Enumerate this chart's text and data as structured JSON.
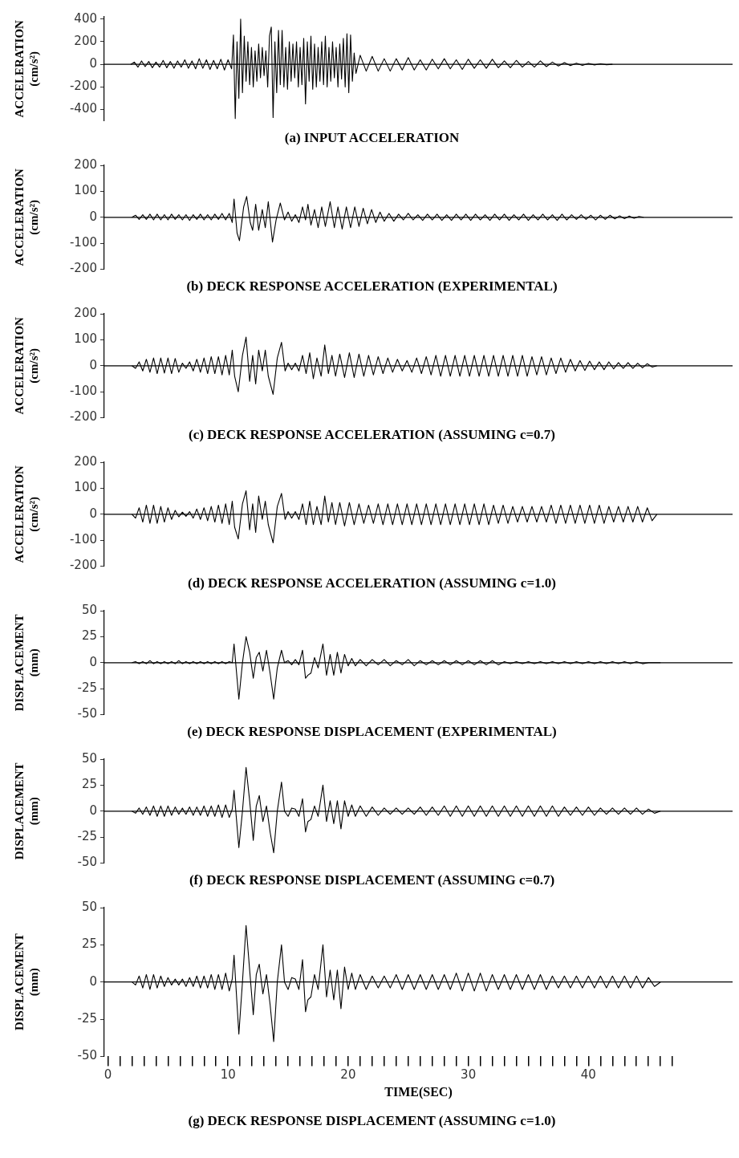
{
  "chart_data": [
    {
      "type": "line",
      "title": "(a) INPUT ACCELERATION",
      "ylabel": "ACCELERATION (cm/s²)",
      "color": "#000000",
      "xlim": [
        -0.3,
        52
      ],
      "ylim": [
        -500,
        420
      ],
      "yticks": [
        -400,
        -200,
        0,
        200,
        400
      ],
      "tick_labels": "y",
      "ref_lines": [
        {
          "axis": "y",
          "value": 0
        }
      ],
      "x": [
        1.9,
        2.2,
        2.5,
        2.8,
        3.1,
        3.4,
        3.7,
        4.0,
        4.3,
        4.6,
        4.9,
        5.2,
        5.5,
        5.8,
        6.1,
        6.4,
        6.7,
        7.0,
        7.3,
        7.6,
        7.9,
        8.2,
        8.5,
        8.8,
        9.1,
        9.4,
        9.7,
        10.0,
        10.3,
        10.45,
        10.6,
        10.75,
        10.9,
        11.05,
        11.2,
        11.35,
        11.5,
        11.65,
        11.8,
        11.95,
        12.1,
        12.25,
        12.4,
        12.55,
        12.7,
        12.85,
        13.0,
        13.15,
        13.3,
        13.45,
        13.6,
        13.75,
        13.9,
        14.05,
        14.2,
        14.35,
        14.5,
        14.65,
        14.8,
        14.95,
        15.1,
        15.25,
        15.4,
        15.55,
        15.7,
        15.85,
        16.0,
        16.15,
        16.3,
        16.45,
        16.6,
        16.75,
        16.9,
        17.05,
        17.2,
        17.35,
        17.5,
        17.65,
        17.8,
        17.95,
        18.1,
        18.25,
        18.4,
        18.55,
        18.7,
        18.85,
        19.0,
        19.15,
        19.3,
        19.45,
        19.6,
        19.75,
        19.9,
        20.05,
        20.2,
        20.35,
        20.5,
        20.65,
        21,
        21.5,
        22,
        22.5,
        23,
        23.5,
        24,
        24.5,
        25,
        25.5,
        26,
        26.5,
        27,
        27.5,
        28,
        28.5,
        29,
        29.5,
        30,
        30.5,
        31,
        31.5,
        32,
        32.5,
        33,
        33.5,
        34,
        34.5,
        35,
        35.5,
        36,
        36.5,
        37,
        37.5,
        38,
        38.5,
        39,
        39.5,
        40,
        40.5,
        41,
        41.5,
        42
      ],
      "values": [
        0,
        20,
        -25,
        30,
        -20,
        25,
        -30,
        20,
        -25,
        35,
        -30,
        25,
        -35,
        30,
        -25,
        40,
        -35,
        30,
        -40,
        50,
        -35,
        40,
        -45,
        35,
        -40,
        45,
        -50,
        40,
        -40,
        260,
        -480,
        200,
        -300,
        400,
        -250,
        250,
        -150,
        200,
        -180,
        150,
        -200,
        120,
        -150,
        180,
        -120,
        150,
        -100,
        120,
        -200,
        250,
        330,
        -470,
        200,
        -250,
        300,
        -180,
        300,
        -200,
        150,
        -220,
        200,
        -150,
        180,
        -120,
        200,
        -200,
        150,
        -180,
        230,
        -350,
        200,
        -150,
        250,
        -220,
        180,
        -200,
        150,
        -150,
        200,
        -180,
        250,
        -200,
        150,
        -150,
        200,
        -120,
        150,
        -200,
        180,
        -130,
        230,
        -200,
        270,
        -250,
        260,
        -150,
        100,
        -80,
        80,
        -60,
        70,
        -60,
        50,
        -60,
        50,
        -50,
        60,
        -50,
        40,
        -50,
        45,
        -40,
        50,
        -40,
        40,
        -45,
        45,
        -35,
        40,
        -35,
        45,
        -30,
        30,
        -30,
        35,
        -25,
        25,
        -25,
        30,
        -20,
        20,
        -15,
        15,
        -12,
        10,
        -10,
        8,
        -5,
        5,
        -3,
        0
      ]
    },
    {
      "type": "line",
      "title": "(b) DECK RESPONSE ACCELERATION (EXPERIMENTAL)",
      "ylabel": "ACCELERATION (cm/s²)",
      "color": "#000000",
      "xlim": [
        -0.3,
        52
      ],
      "ylim": [
        -200,
        200
      ],
      "yticks": [
        -200,
        -100,
        0,
        100,
        200
      ],
      "tick_labels": "y",
      "ref_lines": [
        {
          "axis": "y",
          "value": 0
        }
      ],
      "x": [
        2.0,
        2.3,
        2.6,
        2.9,
        3.2,
        3.5,
        3.8,
        4.1,
        4.4,
        4.7,
        5.0,
        5.3,
        5.6,
        5.9,
        6.2,
        6.5,
        6.8,
        7.1,
        7.4,
        7.7,
        8.0,
        8.3,
        8.6,
        8.9,
        9.2,
        9.5,
        9.8,
        10.1,
        10.35,
        10.5,
        10.75,
        10.95,
        11.3,
        11.55,
        11.85,
        12.05,
        12.3,
        12.55,
        12.85,
        13.1,
        13.35,
        13.7,
        14.0,
        14.35,
        14.7,
        15.0,
        15.3,
        15.6,
        15.9,
        16.2,
        16.45,
        16.65,
        16.9,
        17.2,
        17.5,
        17.8,
        18.1,
        18.5,
        18.85,
        19.15,
        19.5,
        19.85,
        20.2,
        20.55,
        20.9,
        21.25,
        21.6,
        21.95,
        22.3,
        22.65,
        23.0,
        23.4,
        23.8,
        24.2,
        24.6,
        25.0,
        25.4,
        25.8,
        26.2,
        26.6,
        27.0,
        27.4,
        27.8,
        28.2,
        28.6,
        29.0,
        29.4,
        29.8,
        30.2,
        30.6,
        31.0,
        31.4,
        31.8,
        32.2,
        32.6,
        33.0,
        33.4,
        33.8,
        34.2,
        34.6,
        35.0,
        35.4,
        35.8,
        36.2,
        36.6,
        37.0,
        37.4,
        37.8,
        38.2,
        38.6,
        39.0,
        39.4,
        39.8,
        40.2,
        40.6,
        41.0,
        41.4,
        41.8,
        42.2,
        42.6,
        43.0,
        43.4,
        43.8,
        44.2,
        44.6
      ],
      "values": [
        0,
        8,
        -8,
        10,
        -8,
        12,
        -10,
        12,
        -10,
        10,
        -10,
        12,
        -8,
        10,
        -10,
        10,
        -12,
        10,
        -8,
        12,
        -10,
        10,
        -10,
        12,
        -8,
        15,
        -10,
        15,
        -20,
        70,
        -60,
        -90,
        40,
        80,
        -20,
        -50,
        50,
        -50,
        30,
        -40,
        60,
        -95,
        -10,
        55,
        -10,
        20,
        -15,
        10,
        -20,
        40,
        -10,
        50,
        -30,
        30,
        -40,
        40,
        -35,
        60,
        -40,
        40,
        -45,
        40,
        -40,
        40,
        -35,
        35,
        -25,
        30,
        -20,
        20,
        -15,
        15,
        -15,
        12,
        -10,
        15,
        -10,
        10,
        -12,
        12,
        -10,
        12,
        -12,
        10,
        -12,
        12,
        -10,
        12,
        -12,
        12,
        -10,
        10,
        -12,
        12,
        -10,
        12,
        -12,
        10,
        -10,
        12,
        -12,
        10,
        -10,
        12,
        -10,
        10,
        -12,
        12,
        -10,
        10,
        -8,
        10,
        -8,
        8,
        -10,
        8,
        -8,
        8,
        -6,
        6,
        -5,
        5,
        -4,
        3,
        0
      ]
    },
    {
      "type": "line",
      "title": "(c) DECK RESPONSE ACCELERATION (ASSUMING c=0.7)",
      "ylabel": "ACCELERATION (cm/s²)",
      "color": "#000000",
      "xlim": [
        -0.3,
        52
      ],
      "ylim": [
        -200,
        200
      ],
      "yticks": [
        -200,
        -100,
        0,
        100,
        200
      ],
      "tick_labels": "y",
      "ref_lines": [
        {
          "axis": "y",
          "value": 0
        }
      ],
      "x": [
        2.0,
        2.3,
        2.6,
        2.9,
        3.2,
        3.5,
        3.8,
        4.1,
        4.4,
        4.7,
        5.0,
        5.3,
        5.6,
        5.9,
        6.2,
        6.5,
        6.8,
        7.1,
        7.4,
        7.7,
        8.0,
        8.3,
        8.6,
        8.9,
        9.2,
        9.5,
        9.8,
        10.1,
        10.35,
        10.55,
        10.85,
        11.2,
        11.5,
        11.8,
        12.05,
        12.3,
        12.55,
        12.85,
        13.1,
        13.35,
        13.75,
        14.1,
        14.45,
        14.75,
        15.0,
        15.3,
        15.6,
        15.9,
        16.2,
        16.5,
        16.8,
        17.1,
        17.4,
        17.75,
        18.05,
        18.35,
        18.65,
        18.95,
        19.3,
        19.7,
        20.1,
        20.5,
        20.9,
        21.3,
        21.7,
        22.1,
        22.5,
        22.9,
        23.3,
        23.7,
        24.1,
        24.5,
        24.9,
        25.3,
        25.7,
        26.1,
        26.5,
        26.9,
        27.3,
        27.7,
        28.1,
        28.5,
        28.9,
        29.3,
        29.7,
        30.1,
        30.5,
        30.9,
        31.3,
        31.7,
        32.1,
        32.5,
        32.9,
        33.3,
        33.7,
        34.1,
        34.5,
        34.9,
        35.3,
        35.7,
        36.1,
        36.5,
        36.9,
        37.3,
        37.7,
        38.1,
        38.5,
        38.9,
        39.3,
        39.7,
        40.1,
        40.5,
        40.9,
        41.3,
        41.7,
        42.1,
        42.5,
        42.9,
        43.3,
        43.7,
        44.1,
        44.5,
        44.9,
        45.3,
        45.7
      ],
      "values": [
        0,
        -10,
        15,
        -20,
        25,
        -25,
        30,
        -30,
        30,
        -28,
        30,
        -30,
        28,
        -25,
        10,
        -10,
        15,
        -20,
        25,
        -25,
        30,
        -30,
        35,
        -30,
        35,
        -35,
        40,
        -35,
        60,
        -40,
        -100,
        40,
        110,
        -60,
        40,
        -70,
        60,
        -20,
        60,
        -40,
        -110,
        30,
        90,
        -20,
        10,
        -15,
        10,
        -20,
        40,
        -30,
        50,
        -50,
        30,
        -40,
        80,
        -30,
        40,
        -40,
        45,
        -45,
        50,
        -45,
        45,
        -40,
        40,
        -35,
        35,
        -30,
        30,
        -25,
        25,
        -20,
        20,
        -25,
        30,
        -30,
        35,
        -35,
        40,
        -40,
        40,
        -40,
        40,
        -40,
        40,
        -40,
        40,
        -40,
        40,
        -40,
        40,
        -40,
        40,
        -40,
        40,
        -40,
        40,
        -40,
        35,
        -35,
        35,
        -35,
        30,
        -30,
        30,
        -25,
        25,
        -20,
        20,
        -18,
        18,
        -15,
        15,
        -15,
        15,
        -12,
        12,
        -10,
        12,
        -10,
        10,
        -8,
        8,
        -5,
        0
      ]
    },
    {
      "type": "line",
      "title": "(d) DECK RESPONSE ACCELERATION (ASSUMING c=1.0)",
      "ylabel": "ACCELERATION (cm/s²)",
      "color": "#000000",
      "xlim": [
        -0.3,
        52
      ],
      "ylim": [
        -200,
        200
      ],
      "yticks": [
        -200,
        -100,
        0,
        100,
        200
      ],
      "tick_labels": "y",
      "ref_lines": [
        {
          "axis": "y",
          "value": 0
        }
      ],
      "x": [
        2.0,
        2.3,
        2.6,
        2.9,
        3.2,
        3.5,
        3.8,
        4.1,
        4.4,
        4.7,
        5.0,
        5.3,
        5.6,
        5.9,
        6.2,
        6.5,
        6.8,
        7.1,
        7.4,
        7.7,
        8.0,
        8.3,
        8.6,
        8.9,
        9.2,
        9.5,
        9.8,
        10.1,
        10.35,
        10.55,
        10.85,
        11.2,
        11.5,
        11.8,
        12.05,
        12.3,
        12.55,
        12.85,
        13.1,
        13.35,
        13.75,
        14.1,
        14.45,
        14.75,
        15.0,
        15.3,
        15.6,
        15.9,
        16.2,
        16.5,
        16.8,
        17.1,
        17.4,
        17.75,
        18.05,
        18.35,
        18.65,
        18.95,
        19.3,
        19.7,
        20.1,
        20.5,
        20.9,
        21.3,
        21.7,
        22.1,
        22.5,
        22.9,
        23.3,
        23.7,
        24.1,
        24.5,
        24.9,
        25.3,
        25.7,
        26.1,
        26.5,
        26.9,
        27.3,
        27.7,
        28.1,
        28.5,
        28.9,
        29.3,
        29.7,
        30.1,
        30.5,
        30.9,
        31.3,
        31.7,
        32.1,
        32.5,
        32.9,
        33.3,
        33.7,
        34.1,
        34.5,
        34.9,
        35.3,
        35.7,
        36.1,
        36.5,
        36.9,
        37.3,
        37.7,
        38.1,
        38.5,
        38.9,
        39.3,
        39.7,
        40.1,
        40.5,
        40.9,
        41.3,
        41.7,
        42.1,
        42.5,
        42.9,
        43.3,
        43.7,
        44.1,
        44.5,
        44.9,
        45.3,
        45.7
      ],
      "values": [
        0,
        -15,
        25,
        -30,
        35,
        -35,
        35,
        -35,
        30,
        -30,
        25,
        -20,
        15,
        -10,
        8,
        -8,
        10,
        -15,
        20,
        -20,
        25,
        -25,
        30,
        -30,
        35,
        -35,
        40,
        -40,
        50,
        -50,
        -95,
        40,
        90,
        -60,
        40,
        -70,
        70,
        -20,
        50,
        -40,
        -110,
        30,
        80,
        -20,
        10,
        -15,
        10,
        -20,
        40,
        -40,
        50,
        -40,
        30,
        -40,
        70,
        -30,
        45,
        -40,
        45,
        -45,
        45,
        -40,
        40,
        -35,
        35,
        -35,
        40,
        -40,
        40,
        -40,
        40,
        -40,
        40,
        -40,
        40,
        -40,
        40,
        -40,
        40,
        -40,
        40,
        -40,
        40,
        -40,
        40,
        -40,
        40,
        -40,
        40,
        -40,
        35,
        -35,
        35,
        -35,
        30,
        -30,
        30,
        -30,
        30,
        -30,
        30,
        -30,
        35,
        -35,
        35,
        -35,
        35,
        -35,
        35,
        -35,
        35,
        -35,
        35,
        -35,
        30,
        -30,
        30,
        -30,
        30,
        -30,
        30,
        -30,
        25,
        -25,
        0
      ]
    },
    {
      "type": "line",
      "title": "(e) DECK RESPONSE DISPLACEMENT (EXPERIMENTAL)",
      "ylabel": "DISPLACEMENT (mm)",
      "color": "#000000",
      "xlim": [
        -0.3,
        52
      ],
      "ylim": [
        -50,
        50
      ],
      "yticks": [
        -50,
        -25,
        0,
        25,
        50
      ],
      "tick_labels": "y",
      "ref_lines": [
        {
          "axis": "y",
          "value": 0
        }
      ],
      "x": [
        2.0,
        2.3,
        2.6,
        2.9,
        3.2,
        3.5,
        3.8,
        4.1,
        4.4,
        4.7,
        5.0,
        5.3,
        5.6,
        5.9,
        6.2,
        6.5,
        6.8,
        7.1,
        7.4,
        7.7,
        8.0,
        8.3,
        8.6,
        8.9,
        9.2,
        9.5,
        9.8,
        10.1,
        10.35,
        10.5,
        10.9,
        11.2,
        11.5,
        11.8,
        12.1,
        12.35,
        12.6,
        12.9,
        13.2,
        13.5,
        13.8,
        14.1,
        14.45,
        14.7,
        15.0,
        15.3,
        15.6,
        15.9,
        16.2,
        16.45,
        16.65,
        16.9,
        17.2,
        17.5,
        17.9,
        18.2,
        18.5,
        18.8,
        19.1,
        19.4,
        19.7,
        20.0,
        20.3,
        20.6,
        21,
        21.5,
        22,
        22.5,
        23,
        23.5,
        24,
        24.5,
        25,
        25.5,
        26,
        26.5,
        27,
        27.5,
        28,
        28.5,
        29,
        29.5,
        30,
        30.5,
        31,
        31.5,
        32,
        32.5,
        33,
        33.5,
        34,
        34.5,
        35,
        35.5,
        36,
        36.5,
        37,
        37.5,
        38,
        38.5,
        39,
        39.5,
        40,
        40.5,
        41,
        41.5,
        42,
        42.5,
        43,
        43.5,
        44,
        44.5,
        45,
        45.5,
        46
      ],
      "values": [
        0,
        1,
        -1,
        1,
        -1,
        2,
        -1,
        1,
        -1,
        1,
        -1,
        1,
        -1,
        2,
        -1,
        1,
        -1,
        1,
        -1,
        1,
        -1,
        1,
        -1,
        1,
        -1,
        1,
        -1,
        1,
        0,
        18,
        -35,
        0,
        25,
        10,
        -15,
        5,
        10,
        -8,
        12,
        -10,
        -35,
        -5,
        12,
        0,
        2,
        -2,
        3,
        -2,
        12,
        -15,
        -12,
        -10,
        5,
        -5,
        18,
        -12,
        8,
        -12,
        10,
        -10,
        8,
        -3,
        4,
        -3,
        3,
        -3,
        3,
        -2,
        3,
        -3,
        2,
        -2,
        3,
        -3,
        2,
        -2,
        2,
        -2,
        2,
        -2,
        2,
        -2,
        2,
        -2,
        2,
        -2,
        2,
        -2,
        1,
        -1,
        1,
        -1,
        1,
        -1,
        1,
        -1,
        1,
        -1,
        1,
        -1,
        1,
        -1,
        1,
        -1,
        1,
        -1,
        1,
        -1,
        1,
        -1,
        1,
        -1,
        0,
        0,
        0
      ]
    },
    {
      "type": "line",
      "title": "(f) DECK RESPONSE DISPLACEMENT (ASSUMING c=0.7)",
      "ylabel": "DISPLACEMENT (mm)",
      "color": "#000000",
      "xlim": [
        -0.3,
        52
      ],
      "ylim": [
        -50,
        50
      ],
      "yticks": [
        -50,
        -25,
        0,
        25,
        50
      ],
      "tick_labels": "y",
      "ref_lines": [
        {
          "axis": "y",
          "value": 0
        }
      ],
      "x": [
        2.0,
        2.3,
        2.6,
        2.9,
        3.2,
        3.5,
        3.8,
        4.1,
        4.4,
        4.7,
        5.0,
        5.3,
        5.6,
        5.9,
        6.2,
        6.5,
        6.8,
        7.1,
        7.4,
        7.7,
        8.0,
        8.3,
        8.6,
        8.9,
        9.2,
        9.5,
        9.8,
        10.1,
        10.35,
        10.5,
        10.9,
        11.2,
        11.5,
        11.8,
        12.1,
        12.35,
        12.6,
        12.9,
        13.2,
        13.5,
        13.8,
        14.1,
        14.45,
        14.7,
        15.0,
        15.3,
        15.6,
        15.9,
        16.2,
        16.45,
        16.65,
        16.9,
        17.2,
        17.5,
        17.9,
        18.2,
        18.5,
        18.8,
        19.1,
        19.4,
        19.7,
        20.0,
        20.3,
        20.6,
        21,
        21.5,
        22,
        22.5,
        23,
        23.5,
        24,
        24.5,
        25,
        25.5,
        26,
        26.5,
        27,
        27.5,
        28,
        28.5,
        29,
        29.5,
        30,
        30.5,
        31,
        31.5,
        32,
        32.5,
        33,
        33.5,
        34,
        34.5,
        35,
        35.5,
        36,
        36.5,
        37,
        37.5,
        38,
        38.5,
        39,
        39.5,
        40,
        40.5,
        41,
        41.5,
        42,
        42.5,
        43,
        43.5,
        44,
        44.5,
        45,
        45.5,
        46
      ],
      "values": [
        0,
        -2,
        3,
        -3,
        4,
        -4,
        5,
        -5,
        5,
        -5,
        5,
        -4,
        4,
        -3,
        3,
        -3,
        4,
        -4,
        4,
        -4,
        5,
        -5,
        5,
        -5,
        6,
        -6,
        6,
        -6,
        2,
        20,
        -35,
        0,
        42,
        10,
        -28,
        5,
        15,
        -10,
        5,
        -20,
        -40,
        0,
        28,
        0,
        -5,
        3,
        2,
        -5,
        12,
        -20,
        -10,
        -8,
        5,
        -5,
        25,
        -10,
        10,
        -12,
        10,
        -17,
        10,
        -5,
        6,
        -5,
        5,
        -5,
        4,
        -4,
        3,
        -3,
        3,
        -3,
        3,
        -3,
        4,
        -4,
        4,
        -4,
        5,
        -5,
        5,
        -5,
        5,
        -5,
        5,
        -5,
        5,
        -5,
        5,
        -5,
        5,
        -5,
        5,
        -5,
        5,
        -5,
        5,
        -5,
        4,
        -4,
        4,
        -4,
        4,
        -4,
        3,
        -3,
        3,
        -3,
        3,
        -3,
        3,
        -3,
        2,
        -2,
        0
      ]
    },
    {
      "type": "line",
      "title": "(g) DECK RESPONSE DISPLACEMENT (ASSUMING c=1.0)",
      "ylabel": "DISPLACEMENT (mm)",
      "xlabel": "TIME(SEC)",
      "color": "#000000",
      "xlim": [
        -0.3,
        52
      ],
      "ylim": [
        -50,
        50
      ],
      "yticks": [
        -50,
        -25,
        0,
        25,
        50
      ],
      "ref_lines": [
        {
          "axis": "y",
          "value": 0
        }
      ],
      "xticks": [
        0,
        {
          "value": 1,
          "label": null
        },
        {
          "value": 2,
          "label": null
        },
        {
          "value": 3,
          "label": null
        },
        {
          "value": 4,
          "label": null
        },
        {
          "value": 5,
          "label": null
        },
        {
          "value": 6,
          "label": null
        },
        {
          "value": 7,
          "label": null
        },
        {
          "value": 8,
          "label": null
        },
        {
          "value": 9,
          "label": null
        },
        10,
        {
          "value": 11,
          "label": null
        },
        {
          "value": 12,
          "label": null
        },
        {
          "value": 13,
          "label": null
        },
        {
          "value": 14,
          "label": null
        },
        {
          "value": 15,
          "label": null
        },
        {
          "value": 16,
          "label": null
        },
        {
          "value": 17,
          "label": null
        },
        {
          "value": 18,
          "label": null
        },
        {
          "value": 19,
          "label": null
        },
        20,
        {
          "value": 21,
          "label": null
        },
        {
          "value": 22,
          "label": null
        },
        {
          "value": 23,
          "label": null
        },
        {
          "value": 24,
          "label": null
        },
        {
          "value": 25,
          "label": null
        },
        {
          "value": 26,
          "label": null
        },
        {
          "value": 27,
          "label": null
        },
        {
          "value": 28,
          "label": null
        },
        {
          "value": 29,
          "label": null
        },
        30,
        {
          "value": 31,
          "label": null
        },
        {
          "value": 32,
          "label": null
        },
        {
          "value": 33,
          "label": null
        },
        {
          "value": 34,
          "label": null
        },
        {
          "value": 35,
          "label": null
        },
        {
          "value": 36,
          "label": null
        },
        {
          "value": 37,
          "label": null
        },
        {
          "value": 38,
          "label": null
        },
        {
          "value": 39,
          "label": null
        },
        40,
        {
          "value": 41,
          "label": null
        },
        {
          "value": 42,
          "label": null
        },
        {
          "value": 43,
          "label": null
        },
        {
          "value": 44,
          "label": null
        },
        {
          "value": 45,
          "label": null
        },
        {
          "value": 46,
          "label": null
        },
        {
          "value": 47,
          "label": null
        }
      ],
      "x": [
        2.0,
        2.3,
        2.6,
        2.9,
        3.2,
        3.5,
        3.8,
        4.1,
        4.4,
        4.7,
        5.0,
        5.3,
        5.6,
        5.9,
        6.2,
        6.5,
        6.8,
        7.1,
        7.4,
        7.7,
        8.0,
        8.3,
        8.6,
        8.9,
        9.2,
        9.5,
        9.8,
        10.1,
        10.35,
        10.5,
        10.9,
        11.2,
        11.5,
        11.8,
        12.1,
        12.35,
        12.6,
        12.9,
        13.2,
        13.5,
        13.8,
        14.1,
        14.45,
        14.7,
        15.0,
        15.3,
        15.6,
        15.9,
        16.2,
        16.45,
        16.65,
        16.9,
        17.2,
        17.5,
        17.9,
        18.2,
        18.5,
        18.8,
        19.1,
        19.4,
        19.7,
        20.0,
        20.3,
        20.6,
        21,
        21.5,
        22,
        22.5,
        23,
        23.5,
        24,
        24.5,
        25,
        25.5,
        26,
        26.5,
        27,
        27.5,
        28,
        28.5,
        29,
        29.5,
        30,
        30.5,
        31,
        31.5,
        32,
        32.5,
        33,
        33.5,
        34,
        34.5,
        35,
        35.5,
        36,
        36.5,
        37,
        37.5,
        38,
        38.5,
        39,
        39.5,
        40,
        40.5,
        41,
        41.5,
        42,
        42.5,
        43,
        43.5,
        44,
        44.5,
        45,
        45.5,
        46
      ],
      "values": [
        0,
        -2,
        4,
        -4,
        5,
        -5,
        5,
        -4,
        4,
        -3,
        3,
        -2,
        2,
        -2,
        2,
        -3,
        3,
        -3,
        4,
        -4,
        4,
        -4,
        5,
        -5,
        5,
        -5,
        6,
        -6,
        2,
        18,
        -35,
        0,
        38,
        8,
        -22,
        5,
        12,
        -8,
        5,
        -15,
        -40,
        0,
        25,
        0,
        -5,
        3,
        2,
        -5,
        15,
        -20,
        -12,
        -10,
        5,
        -5,
        25,
        -10,
        8,
        -12,
        8,
        -18,
        10,
        -5,
        6,
        -5,
        5,
        -5,
        4,
        -4,
        4,
        -4,
        5,
        -5,
        5,
        -5,
        5,
        -5,
        5,
        -5,
        5,
        -5,
        6,
        -6,
        6,
        -6,
        6,
        -6,
        5,
        -5,
        5,
        -5,
        5,
        -5,
        5,
        -5,
        5,
        -5,
        4,
        -4,
        4,
        -4,
        4,
        -4,
        4,
        -4,
        4,
        -4,
        4,
        -4,
        4,
        -4,
        4,
        -4,
        3,
        -3,
        0
      ]
    }
  ]
}
